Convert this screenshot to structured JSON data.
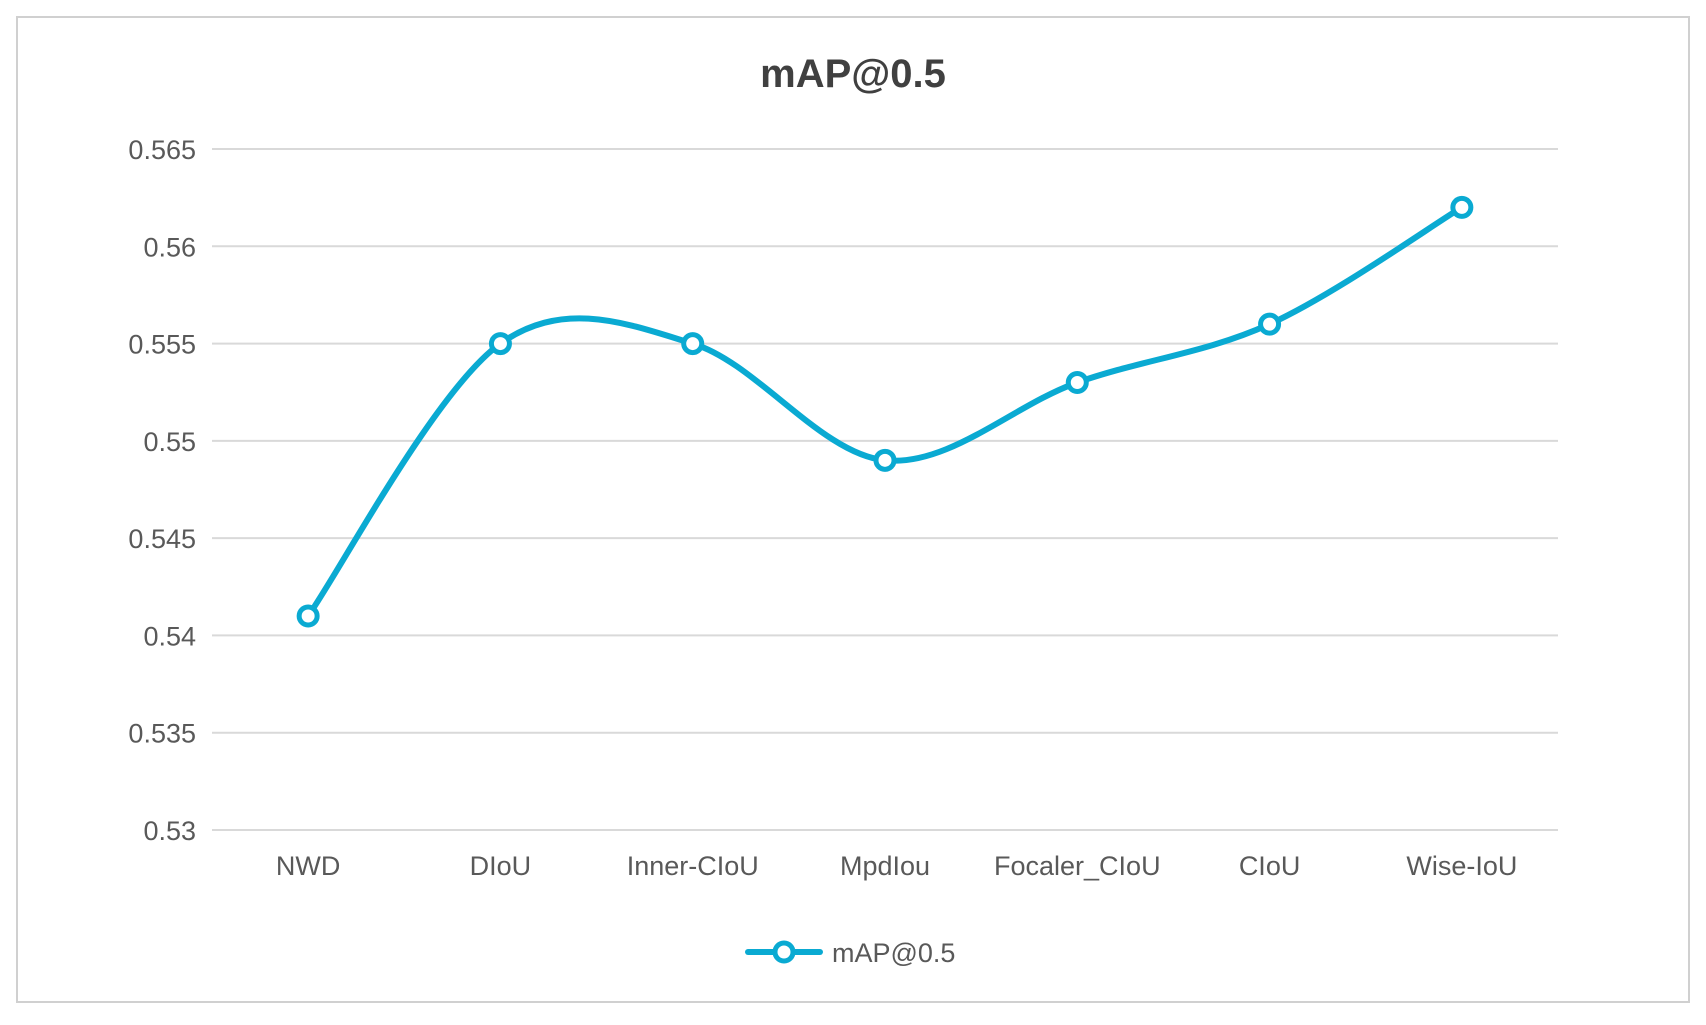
{
  "chart_data": {
    "type": "line",
    "title": "mAP@0.5",
    "categories": [
      "NWD",
      "DIoU",
      "Inner-CIoU",
      "MpdIou",
      "Focaler_CIoU",
      "CIoU",
      "Wise-IoU"
    ],
    "series": [
      {
        "name": "mAP@0.5",
        "values": [
          0.541,
          0.555,
          0.555,
          0.549,
          0.553,
          0.556,
          0.562
        ],
        "color": "#0aaad2"
      }
    ],
    "xlabel": "",
    "ylabel": "",
    "ylim": [
      0.53,
      0.565
    ],
    "yticks": [
      0.53,
      0.535,
      0.54,
      0.545,
      0.55,
      0.555,
      0.56,
      0.565
    ],
    "ytick_labels": [
      "0.53",
      "0.535",
      "0.54",
      "0.545",
      "0.55",
      "0.555",
      "0.56",
      "0.565"
    ],
    "grid": true,
    "smooth": true,
    "legend_position": "bottom"
  }
}
